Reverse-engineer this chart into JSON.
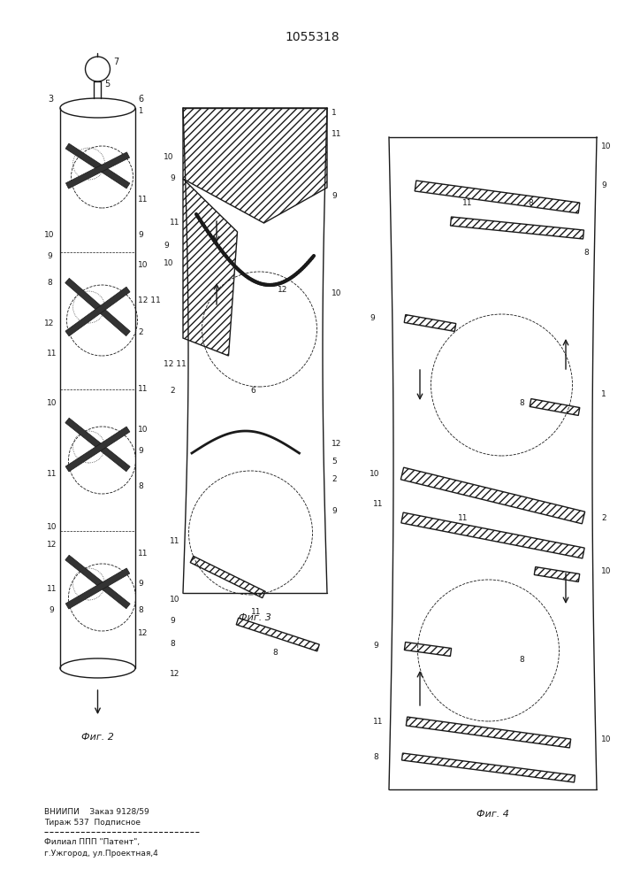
{
  "patent_number": "1055318",
  "background_color": "#ffffff",
  "line_color": "#1a1a1a",
  "fig_width": 7.07,
  "fig_height": 10.0,
  "footer_line1": "ВНИИПИ    Заказ 9128/59",
  "footer_line2": "Тираж 537  Подписное",
  "footer_line3": "Филиал ППП \"Патент\",",
  "footer_line4": "г.Ужгород, ул.Проектная,4",
  "fig1_label": "Фиг. 2",
  "fig2_label": "Фиг. 3",
  "fig3_label": "Фиг. 4"
}
